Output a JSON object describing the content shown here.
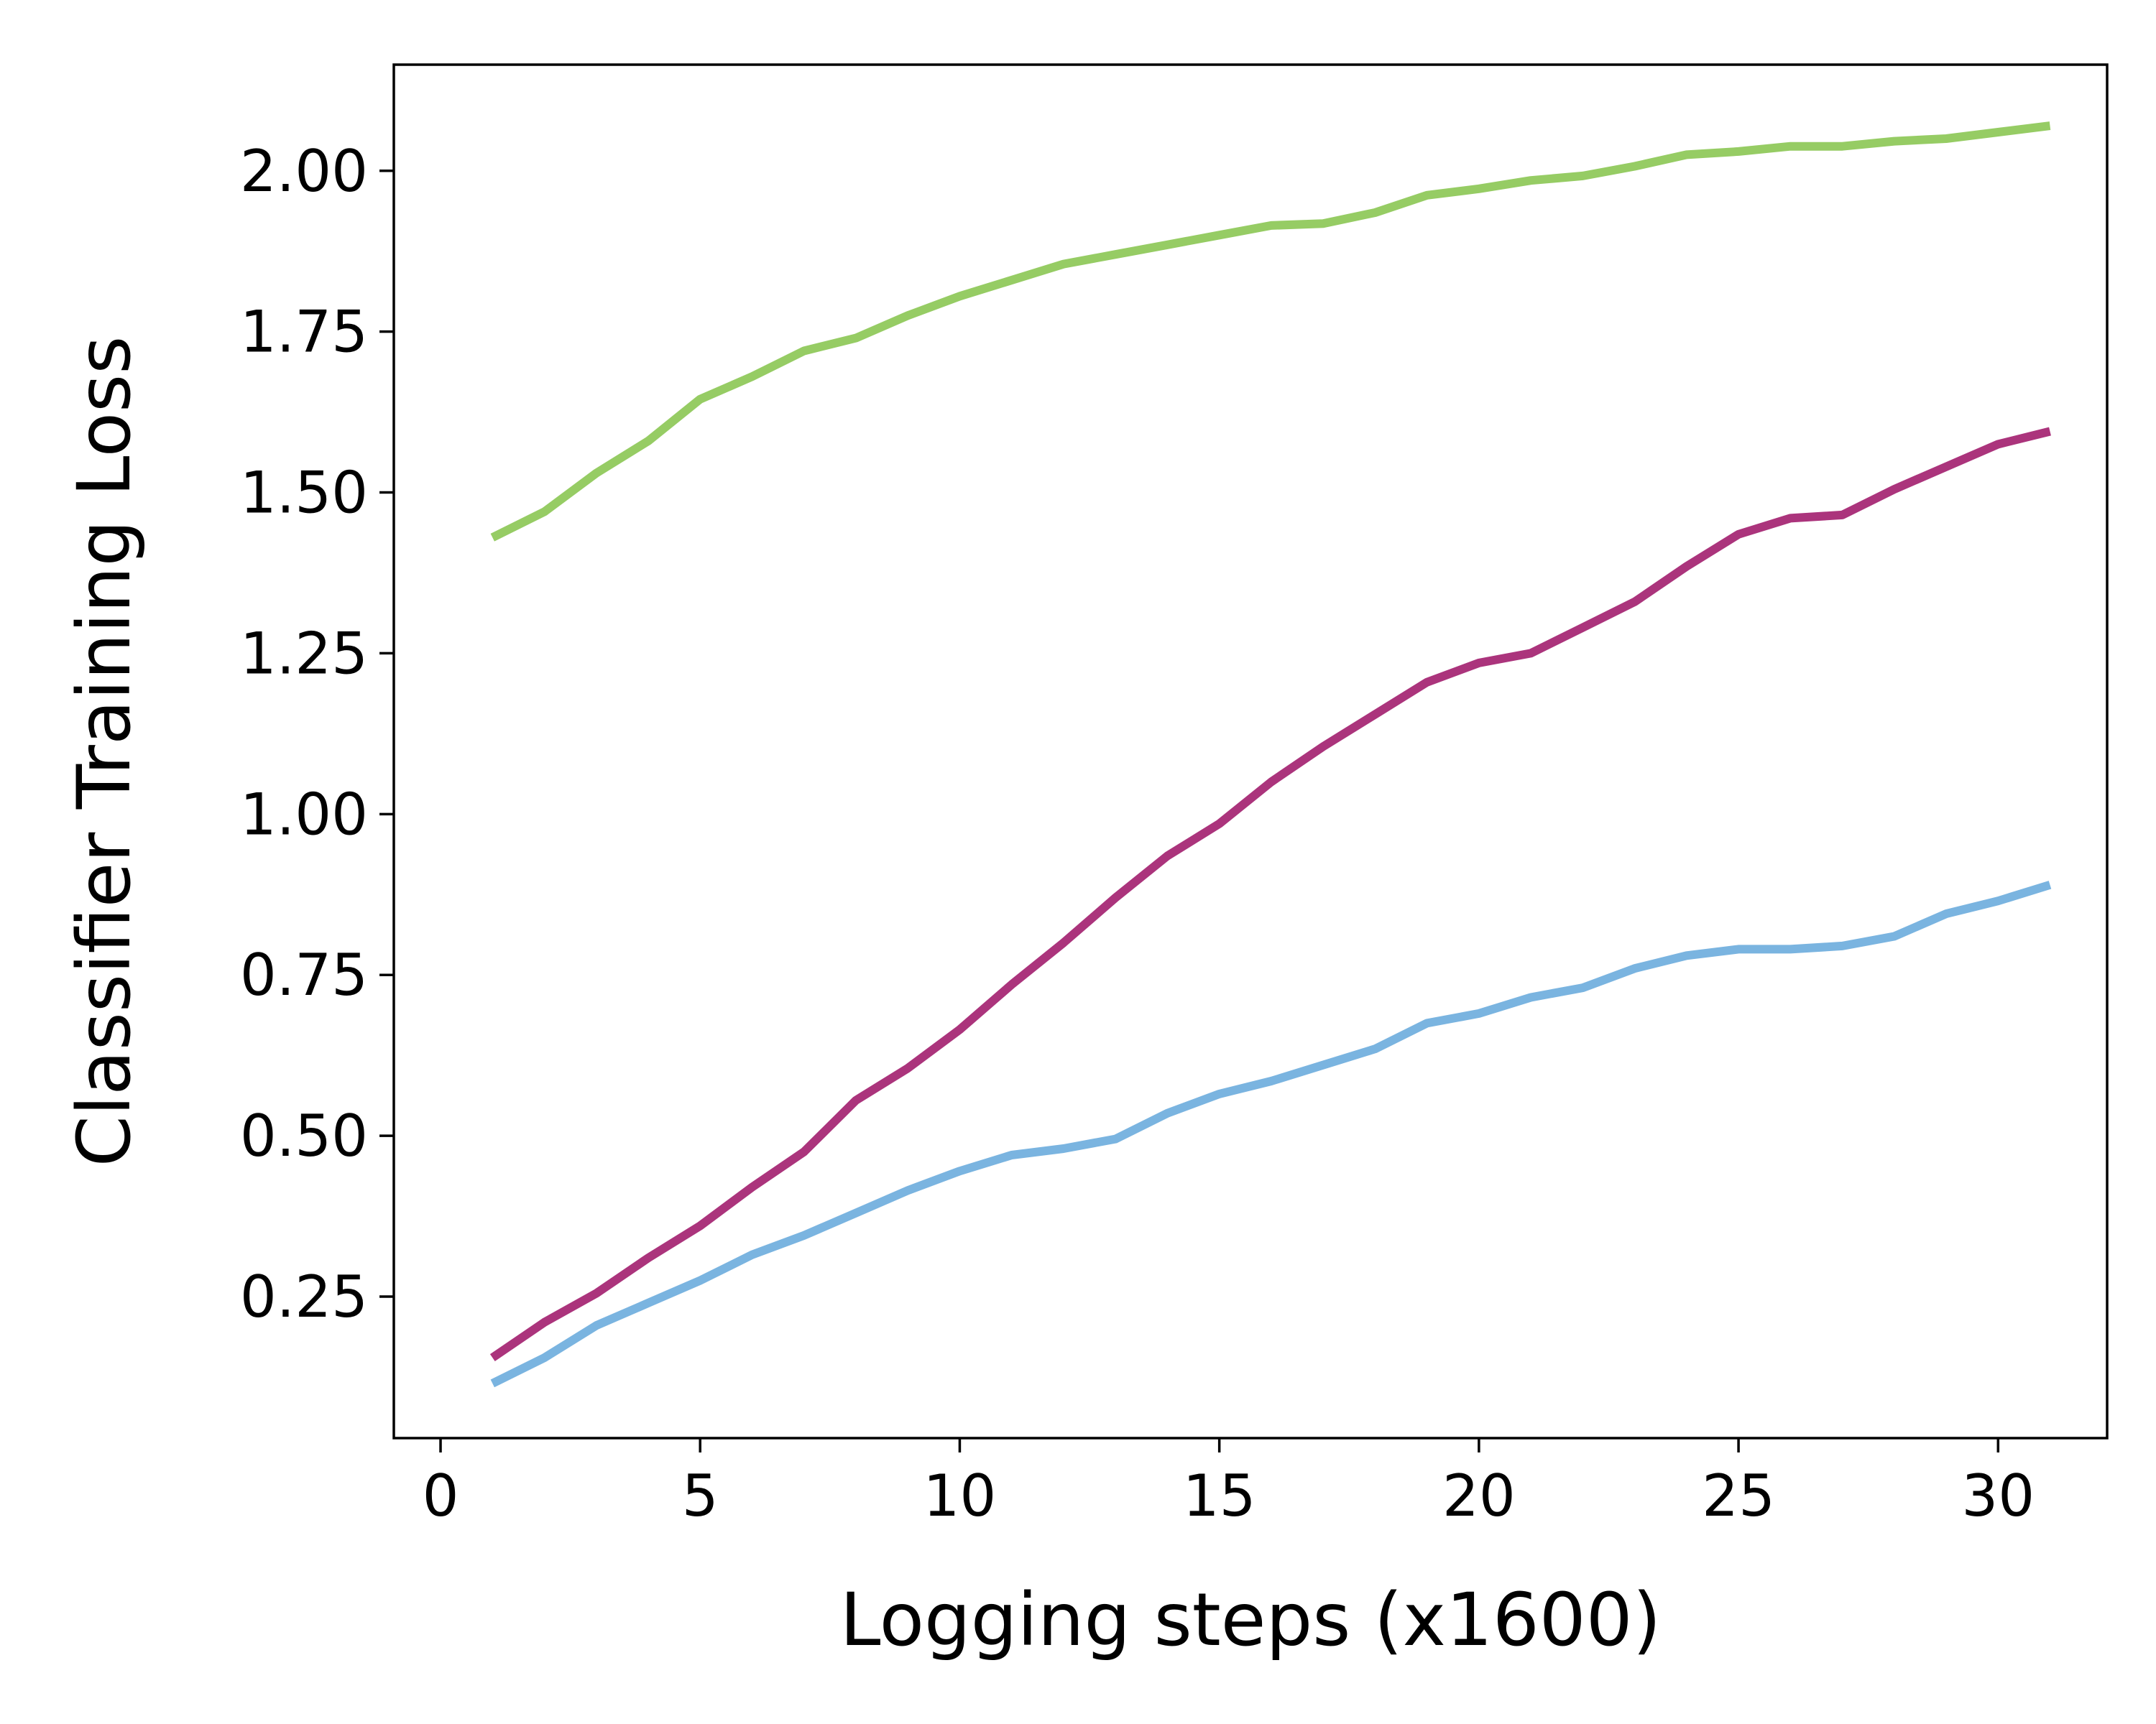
{
  "chart_data": {
    "type": "line",
    "title": "",
    "xlabel": "Logging steps (x1600)",
    "ylabel": "Classifier Training Loss",
    "xlim": [
      -0.9,
      32.1
    ],
    "ylim": [
      0.03,
      2.165
    ],
    "xticks": [
      0,
      5,
      10,
      15,
      20,
      25,
      30
    ],
    "yticks": [
      0.25,
      0.5,
      0.75,
      1.0,
      1.25,
      1.5,
      1.75,
      2.0
    ],
    "xtick_labels": [
      "0",
      "5",
      "10",
      "15",
      "20",
      "25",
      "30"
    ],
    "ytick_labels": [
      "0.25",
      "0.50",
      "0.75",
      "1.00",
      "1.25",
      "1.50",
      "1.75",
      "2.00"
    ],
    "grid": false,
    "legend": false,
    "x": [
      1,
      2,
      3,
      4,
      5,
      6,
      7,
      8,
      9,
      10,
      11,
      12,
      13,
      14,
      15,
      16,
      17,
      18,
      19,
      20,
      21,
      22,
      23,
      24,
      25,
      26,
      27,
      28,
      29,
      30,
      31
    ],
    "series": [
      {
        "color": "#96cc64",
        "values": [
          1.43,
          1.47,
          1.53,
          1.58,
          1.645,
          1.68,
          1.72,
          1.74,
          1.775,
          1.805,
          1.83,
          1.855,
          1.87,
          1.885,
          1.9,
          1.915,
          1.918,
          1.935,
          1.962,
          1.972,
          1.985,
          1.992,
          2.007,
          2.025,
          2.03,
          2.038,
          2.038,
          2.046,
          2.05,
          2.06,
          2.07
        ]
      },
      {
        "color": "#ab347c",
        "values": [
          0.155,
          0.21,
          0.255,
          0.31,
          0.36,
          0.42,
          0.475,
          0.555,
          0.605,
          0.665,
          0.735,
          0.8,
          0.87,
          0.935,
          0.985,
          1.05,
          1.105,
          1.155,
          1.205,
          1.235,
          1.25,
          1.29,
          1.33,
          1.385,
          1.435,
          1.46,
          1.465,
          1.505,
          1.54,
          1.575,
          1.595
        ]
      },
      {
        "color": "#7ab4e0",
        "values": [
          0.115,
          0.155,
          0.205,
          0.24,
          0.275,
          0.315,
          0.345,
          0.38,
          0.415,
          0.445,
          0.47,
          0.48,
          0.495,
          0.535,
          0.565,
          0.585,
          0.61,
          0.635,
          0.675,
          0.69,
          0.715,
          0.73,
          0.76,
          0.78,
          0.79,
          0.79,
          0.795,
          0.81,
          0.845,
          0.865,
          0.89
        ]
      }
    ]
  }
}
